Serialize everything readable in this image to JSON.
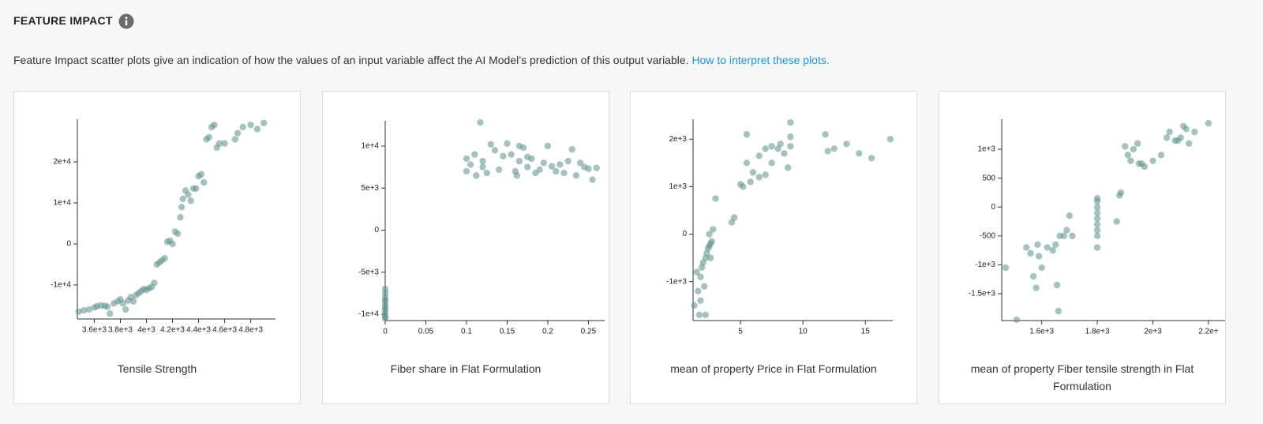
{
  "header": {
    "title": "FEATURE IMPACT",
    "description": "Feature Impact scatter plots give an indication of how the values of an input variable affect the AI Model’s prediction of this output variable.",
    "link": "How to interpret these plots."
  },
  "chart_data": [
    {
      "type": "scatter",
      "x_label": "Tensile Strength",
      "color": "#5e8f88",
      "xlim": [
        3470,
        4990
      ],
      "ylim": [
        -18300,
        30400
      ],
      "xticks": [
        {
          "value": 3600,
          "label": "3.6e+3"
        },
        {
          "value": 3800,
          "label": "3.8e+3"
        },
        {
          "value": 4000,
          "label": "4e+3"
        },
        {
          "value": 4200,
          "label": "4.2e+3"
        },
        {
          "value": 4400,
          "label": "4.4e+3"
        },
        {
          "value": 4600,
          "label": "4.6e+3"
        },
        {
          "value": 4800,
          "label": "4.8e+3"
        }
      ],
      "yticks": [
        {
          "value": -10000,
          "label": "-1e+4"
        },
        0,
        {
          "value": 10000,
          "label": "1e+4"
        },
        {
          "value": 20000,
          "label": "2e+4"
        }
      ],
      "x": [
        3480,
        3520,
        3560,
        3600,
        3620,
        3650,
        3680,
        3700,
        3720,
        3750,
        3780,
        3800,
        3820,
        3840,
        3860,
        3880,
        3900,
        3920,
        3940,
        3960,
        3980,
        4000,
        4020,
        4040,
        4060,
        4080,
        4100,
        4120,
        4140,
        4160,
        4180,
        4200,
        4220,
        4240,
        4260,
        4270,
        4280,
        4300,
        4320,
        4340,
        4360,
        4380,
        4400,
        4420,
        4440,
        4460,
        4480,
        4500,
        4520,
        4540,
        4560,
        4600,
        4680,
        4700,
        4740,
        4800,
        4850,
        4900
      ],
      "y": [
        -16500,
        -16200,
        -16000,
        -15500,
        -15200,
        -15000,
        -15100,
        -15300,
        -17000,
        -14500,
        -14000,
        -13500,
        -14500,
        -16000,
        -13800,
        -13000,
        -14000,
        -12500,
        -12000,
        -11500,
        -11000,
        -11200,
        -10800,
        -10500,
        -9500,
        -5000,
        -4500,
        -4000,
        -3500,
        500,
        800,
        0,
        3000,
        2500,
        6500,
        9000,
        11000,
        13000,
        12000,
        10500,
        13500,
        13500,
        16500,
        17000,
        15000,
        25500,
        26000,
        28500,
        29000,
        23500,
        24500,
        24500,
        25500,
        27000,
        28500,
        29000,
        28000,
        29500
      ]
    },
    {
      "type": "scatter",
      "x_label": "Fiber share in Flat Formulation",
      "color": "#5e8f88",
      "xlim": [
        0,
        0.27
      ],
      "ylim": [
        -10750,
        13000
      ],
      "xticks": [
        0,
        0.05,
        0.1,
        0.15,
        0.2,
        0.25
      ],
      "yticks": [
        {
          "value": -10000,
          "label": "-1e+4"
        },
        {
          "value": -5000,
          "label": "-5e+3"
        },
        0,
        {
          "value": 5000,
          "label": "5e+3"
        },
        {
          "value": 10000,
          "label": "1e+4"
        }
      ],
      "x": [
        0,
        0,
        0,
        0,
        0,
        0,
        0,
        0,
        0,
        0,
        0,
        0.1,
        0.1,
        0.105,
        0.11,
        0.112,
        0.117,
        0.12,
        0.125,
        0.13,
        0.135,
        0.14,
        0.145,
        0.15,
        0.155,
        0.16,
        0.162,
        0.165,
        0.17,
        0.175,
        0.18,
        0.185,
        0.19,
        0.195,
        0.2,
        0.205,
        0.21,
        0.215,
        0.22,
        0.225,
        0.23,
        0.235,
        0.24,
        0.245,
        0.25,
        0.255,
        0.26,
        0.165,
        0.175,
        0.12
      ],
      "y": [
        -7000,
        -7500,
        -8000,
        -8300,
        -8600,
        -9000,
        -9300,
        -9600,
        -10000,
        -10300,
        -10500,
        7000,
        8500,
        7800,
        9000,
        6500,
        12800,
        7500,
        6800,
        10200,
        9500,
        7200,
        8800,
        10300,
        9000,
        7000,
        6500,
        8200,
        9800,
        7500,
        8500,
        6800,
        7200,
        8000,
        10000,
        7600,
        7000,
        7800,
        6800,
        8200,
        9600,
        6500,
        8000,
        7500,
        7300,
        6000,
        7400,
        10000,
        8700,
        8200
      ]
    },
    {
      "type": "scatter",
      "x_label": "mean of property Price in Flat Formulation",
      "color": "#5e8f88",
      "xlim": [
        1.2,
        17.2
      ],
      "ylim": [
        -1820,
        2420
      ],
      "xticks": [
        5,
        10,
        15
      ],
      "yticks": [
        {
          "value": -1000,
          "label": "-1e+3"
        },
        0,
        {
          "value": 1000,
          "label": "1e+3"
        },
        {
          "value": 2000,
          "label": "2e+3"
        }
      ],
      "x": [
        1.3,
        1.5,
        1.6,
        1.7,
        1.8,
        1.9,
        2.0,
        2.1,
        2.2,
        2.3,
        2.4,
        2.5,
        2.6,
        2.7,
        2.8,
        2.2,
        1.8,
        2.5,
        3.0,
        4.3,
        4.5,
        5,
        5.2,
        5.5,
        5.8,
        6,
        6.5,
        7,
        7,
        7.5,
        8,
        8.2,
        8.5,
        9,
        9,
        9,
        8.8,
        7.5,
        5.5,
        11.8,
        12,
        12.5,
        13.5,
        14.5,
        15.5,
        17,
        6.5,
        2.6
      ],
      "y": [
        -1500,
        -800,
        -1200,
        -1700,
        -900,
        -700,
        -600,
        -1100,
        -500,
        -400,
        -300,
        -250,
        -200,
        -150,
        100,
        -1700,
        -1400,
        0,
        750,
        250,
        350,
        1050,
        1000,
        1500,
        1100,
        1300,
        1650,
        1800,
        1250,
        1850,
        1800,
        1900,
        1700,
        2350,
        1850,
        2050,
        1400,
        1500,
        2100,
        2100,
        1750,
        1800,
        1900,
        1700,
        1600,
        2000,
        1200,
        -500
      ]
    },
    {
      "type": "scatter",
      "x_label": "mean of property Fiber tensile strength in Flat Formulation",
      "color": "#5e8f88",
      "xlim": [
        1456,
        2260
      ],
      "ylim": [
        -1965,
        1520
      ],
      "xticks": [
        {
          "value": 1600,
          "label": "1.6e+3"
        },
        {
          "value": 1800,
          "label": "1.8e+3"
        },
        {
          "value": 2000,
          "label": "2e+3"
        },
        {
          "value": 2200,
          "label": "2.2e+"
        }
      ],
      "yticks": [
        {
          "value": -1500,
          "label": "-1.5e+3"
        },
        {
          "value": -1000,
          "label": "-1e+3"
        },
        -500,
        0,
        500,
        {
          "value": 1000,
          "label": "1e+3"
        }
      ],
      "x": [
        1470,
        1510,
        1545,
        1560,
        1570,
        1580,
        1585,
        1590,
        1600,
        1620,
        1640,
        1650,
        1655,
        1660,
        1665,
        1680,
        1690,
        1700,
        1710,
        1800,
        1800,
        1800,
        1800,
        1800,
        1800,
        1800,
        1800,
        1800,
        1870,
        1880,
        1885,
        1900,
        1910,
        1920,
        1930,
        1945,
        1950,
        1960,
        1970,
        2000,
        2030,
        2050,
        2060,
        2090,
        2100,
        2110,
        2120,
        2130,
        2150,
        2200,
        2080
      ],
      "y": [
        -1050,
        -1950,
        -700,
        -800,
        -1200,
        -1400,
        -650,
        -850,
        -1050,
        -700,
        -750,
        -650,
        -1350,
        -1800,
        -500,
        -500,
        -400,
        -150,
        -500,
        150,
        100,
        0,
        -100,
        -200,
        -300,
        -400,
        -500,
        -700,
        -250,
        200,
        250,
        1050,
        900,
        800,
        1000,
        1100,
        750,
        750,
        700,
        800,
        900,
        1200,
        1300,
        1150,
        1200,
        1400,
        1350,
        1100,
        1300,
        1450,
        1150
      ]
    }
  ]
}
